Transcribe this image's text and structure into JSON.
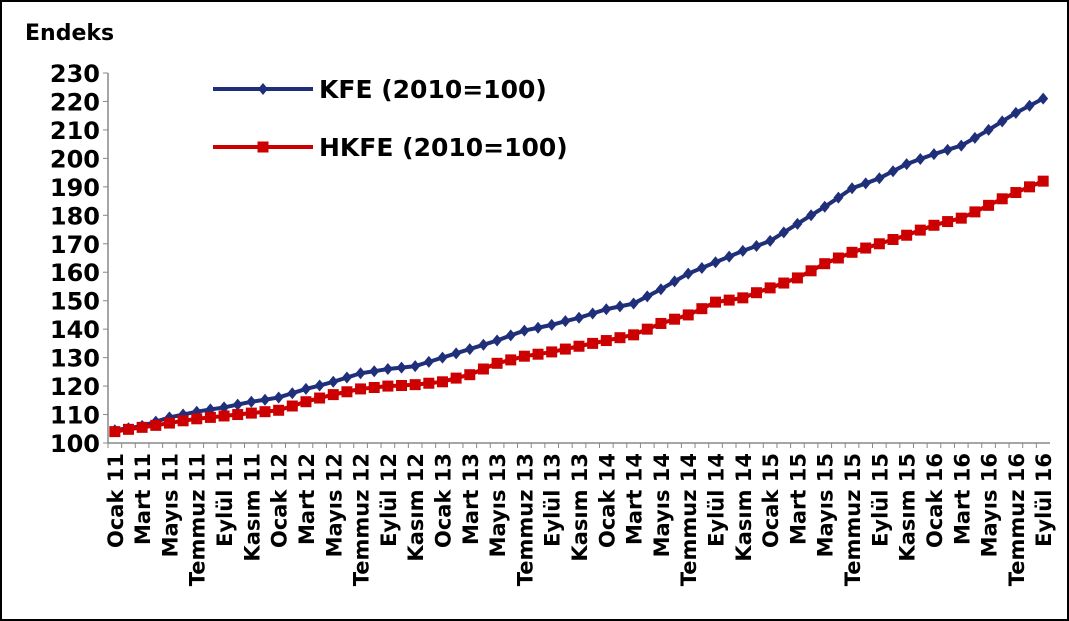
{
  "chart_data": {
    "type": "line",
    "y_label": "Endeks",
    "categories": [
      "Ocak 11",
      null,
      "Mart 11",
      null,
      "Mayıs 11",
      null,
      "Temmuz 11",
      null,
      "Eylül 11",
      null,
      "Kasım 11",
      null,
      "Ocak 12",
      null,
      "Mart 12",
      null,
      "Mayıs 12",
      null,
      "Temmuz 12",
      null,
      "Eylül 12",
      null,
      "Kasım 12",
      null,
      "Ocak 13",
      null,
      "Mart 13",
      null,
      "Mayıs 13",
      null,
      "Temmuz 13",
      null,
      "Eylül 13",
      null,
      "Kasım 13",
      null,
      "Ocak 14",
      null,
      "Mart 14",
      null,
      "Mayıs 14",
      null,
      "Temmuz 14",
      null,
      "Eylül 14",
      null,
      "Kasım 14",
      null,
      "Ocak 15",
      null,
      "Mart 15",
      null,
      "Mayıs 15",
      null,
      "Temmuz 15",
      null,
      "Eylül 15",
      null,
      "Kasım 15",
      null,
      "Ocak 16",
      null,
      "Mart 16",
      null,
      "Mayıs 16",
      null,
      "Temmuz 16",
      null,
      "Eylül 16"
    ],
    "series": [
      {
        "name": "KFE (2010=100)",
        "color": "#1f2f7a",
        "marker": "diamond",
        "values": [
          104.5,
          105.2,
          106,
          107.5,
          109,
          110,
          111,
          111.8,
          112.5,
          113.5,
          114.5,
          115.2,
          116,
          117.5,
          119,
          120.2,
          121.5,
          123,
          124.5,
          125.2,
          126,
          126.5,
          127,
          128.5,
          130,
          131.5,
          133,
          134.5,
          136,
          137.8,
          139.5,
          140.5,
          141.5,
          142.8,
          144,
          145.5,
          147,
          148,
          149,
          151.5,
          154,
          156.8,
          159.5,
          161.5,
          163.5,
          165.5,
          167.5,
          169.2,
          171,
          174,
          177,
          180,
          183,
          186.2,
          189.5,
          191.2,
          193,
          195.5,
          198,
          199.8,
          201.5,
          203,
          204.5,
          207.2,
          210,
          213,
          216,
          218.5,
          221
        ]
      },
      {
        "name": "HKFE (2010=100)",
        "color": "#cc0000",
        "marker": "square",
        "values": [
          104,
          104.8,
          105.5,
          106.2,
          107,
          107.8,
          108.5,
          109,
          109.5,
          110,
          110.5,
          111,
          111.5,
          113,
          114.5,
          115.8,
          117,
          118,
          119,
          119.5,
          120,
          120.2,
          120.5,
          121,
          121.5,
          122.8,
          124,
          126,
          128,
          129.2,
          130.5,
          131.2,
          132,
          133,
          134,
          135,
          136,
          137,
          138,
          140,
          142,
          143.5,
          145,
          147.2,
          149.5,
          150.2,
          151,
          152.8,
          154.5,
          156.2,
          158,
          160.5,
          163,
          165,
          167,
          168.5,
          170,
          171.5,
          173,
          174.8,
          176.5,
          177.8,
          179,
          181.2,
          183.5,
          185.8,
          188,
          190,
          192
        ]
      }
    ],
    "ylim": [
      100,
      230
    ],
    "yticks": [
      100,
      110,
      120,
      130,
      140,
      150,
      160,
      170,
      180,
      190,
      200,
      210,
      220,
      230
    ],
    "grid": false,
    "legend": "upper left"
  }
}
